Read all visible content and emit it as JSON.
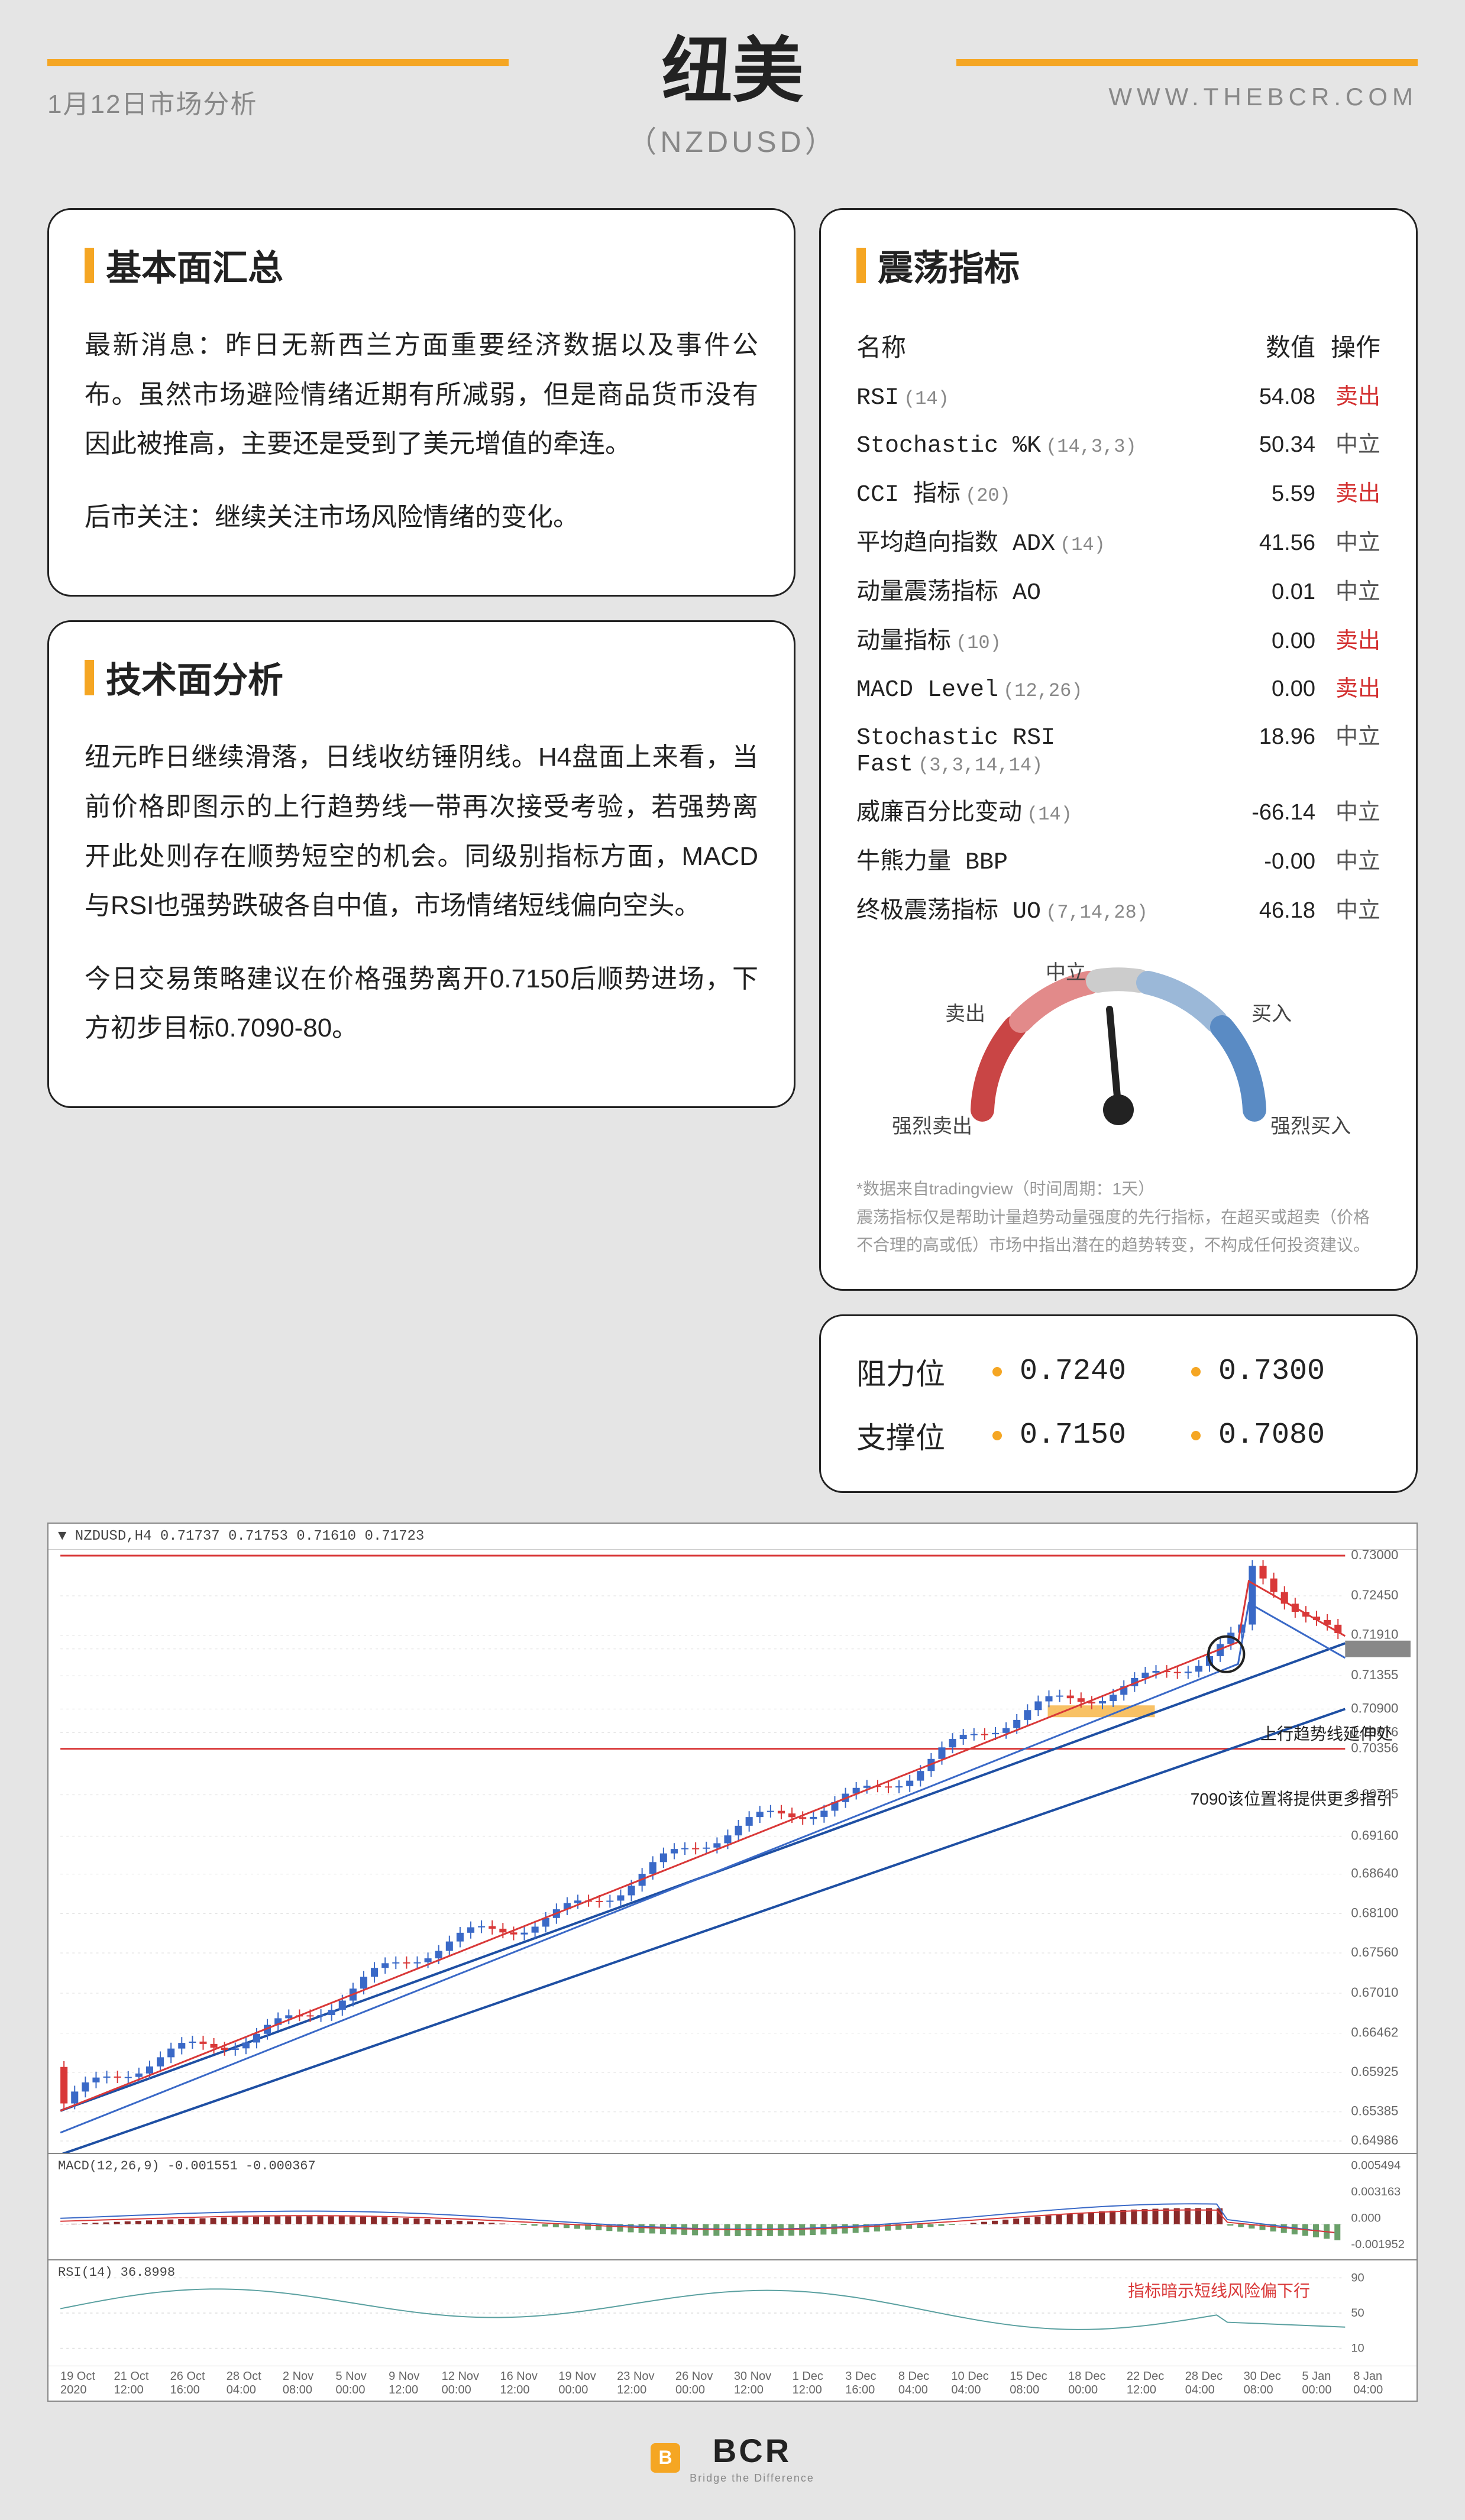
{
  "header": {
    "date": "1月12日市场分析",
    "website": "WWW.THEBCR.COM",
    "title_main": "纽美",
    "title_sub": "（NZDUSD）"
  },
  "fundamental": {
    "title": "基本面汇总",
    "p1": "最新消息：昨日无新西兰方面重要经济数据以及事件公布。虽然市场避险情绪近期有所减弱，但是商品货币没有因此被推高，主要还是受到了美元增值的牵连。",
    "p2": "后市关注：继续关注市场风险情绪的变化。"
  },
  "technical": {
    "title": "技术面分析",
    "p1": "纽元昨日继续滑落，日线收纺锤阴线。H4盘面上来看，当前价格即图示的上行趋势线一带再次接受考验，若强势离开此处则存在顺势短空的机会。同级别指标方面，MACD与RSI也强势跌破各自中值，市场情绪短线偏向空头。",
    "p2": "今日交易策略建议在价格强势离开0.7150后顺势进场，下方初步目标0.7090-80。"
  },
  "oscillator": {
    "title": "震荡指标",
    "head_name": "名称",
    "head_val": "数值",
    "head_act": "操作",
    "rows": [
      {
        "name": "RSI",
        "param": "(14)",
        "val": "54.08",
        "act": "卖出",
        "cls": "sell"
      },
      {
        "name": "Stochastic %K",
        "param": "(14,3,3)",
        "val": "50.34",
        "act": "中立",
        "cls": "neutral"
      },
      {
        "name": "CCI 指标",
        "param": "(20)",
        "val": "5.59",
        "act": "卖出",
        "cls": "sell"
      },
      {
        "name": "平均趋向指数 ADX",
        "param": "(14)",
        "val": "41.56",
        "act": "中立",
        "cls": "neutral"
      },
      {
        "name": "动量震荡指标 AO",
        "param": "",
        "val": "0.01",
        "act": "中立",
        "cls": "neutral"
      },
      {
        "name": "动量指标",
        "param": "(10)",
        "val": "0.00",
        "act": "卖出",
        "cls": "sell"
      },
      {
        "name": "MACD Level",
        "param": "(12,26)",
        "val": "0.00",
        "act": "卖出",
        "cls": "sell"
      },
      {
        "name": "Stochastic RSI Fast",
        "param": "(3,3,14,14)",
        "val": "18.96",
        "act": "中立",
        "cls": "neutral"
      },
      {
        "name": "威廉百分比变动",
        "param": "(14)",
        "val": "-66.14",
        "act": "中立",
        "cls": "neutral"
      },
      {
        "name": "牛熊力量 BBP",
        "param": "",
        "val": "-0.00",
        "act": "中立",
        "cls": "neutral"
      },
      {
        "name": "终极震荡指标 UO",
        "param": "(7,14,28)",
        "val": "46.18",
        "act": "中立",
        "cls": "neutral"
      }
    ],
    "gauge": {
      "labels": {
        "strong_sell": "强烈卖出",
        "sell": "卖出",
        "neutral": "中立",
        "buy": "买入",
        "strong_buy": "强烈买入"
      },
      "needle_angle": -5,
      "colors": {
        "strong_sell": "#c94545",
        "sell": "#e28a8a",
        "neutral": "#cccccc",
        "buy": "#9bb8d8",
        "strong_buy": "#5a8bc4"
      }
    },
    "disclaimer1": "*数据来自tradingview（时间周期：1天）",
    "disclaimer2": "震荡指标仅是帮助计量趋势动量强度的先行指标，在超买或超卖（价格不合理的高或低）市场中指出潜在的趋势转变，不构成任何投资建议。"
  },
  "levels": {
    "resistance_label": "阻力位",
    "support_label": "支撑位",
    "r1": "0.7240",
    "r2": "0.7300",
    "s1": "0.7150",
    "s2": "0.7080"
  },
  "chart": {
    "symbol_header": "▼ NZDUSD,H4  0.71737  0.71753  0.71610  0.71723",
    "macd_header": "MACD(12,26,9) -0.001551 -0.000367",
    "rsi_header": "RSI(14) 36.8998",
    "note1": "上行趋势线延伸处",
    "note2": "7090该位置将提供更多指引",
    "note3": "指标暗示短线风险偏下行",
    "y_ticks": [
      "0.73000",
      "0.72450",
      "0.71910",
      "0.71723",
      "0.71355",
      "0.70900",
      "0.70576",
      "0.70356",
      "0.69725",
      "0.69160",
      "0.68640",
      "0.68100",
      "0.67560",
      "0.67010",
      "0.66462",
      "0.65925",
      "0.65385",
      "0.64986"
    ],
    "macd_ticks": [
      "0.005494",
      "0.003163",
      "0.000",
      "-0.001952"
    ],
    "rsi_ticks": [
      "90",
      "50",
      "10"
    ],
    "x_ticks": [
      "19 Oct 2020",
      "21 Oct 12:00",
      "26 Oct 16:00",
      "28 Oct 04:00",
      "2 Nov 08:00",
      "5 Nov 00:00",
      "9 Nov 12:00",
      "12 Nov 00:00",
      "16 Nov 12:00",
      "19 Nov 00:00",
      "23 Nov 12:00",
      "26 Nov 00:00",
      "30 Nov 12:00",
      "1 Dec 12:00",
      "3 Dec 16:00",
      "8 Dec 04:00",
      "10 Dec 04:00",
      "15 Dec 08:00",
      "18 Dec 00:00",
      "22 Dec 12:00",
      "28 Dec 04:00",
      "30 Dec 08:00",
      "5 Jan 00:00",
      "8 Jan 04:00"
    ],
    "colors": {
      "grid": "#dddddd",
      "up_line1": "#1e4fa3",
      "up_line2": "#1e4fa3",
      "ma_red": "#d93838",
      "ma_blue": "#3a69c7",
      "hline_red": "#d93838",
      "hline_orange": "#f5a623",
      "candle_up": "#3a69c7",
      "candle_down": "#d93838"
    }
  },
  "footer": {
    "logo_letter": "B",
    "logo_name": "BCR",
    "tagline": "Bridge the Difference"
  }
}
